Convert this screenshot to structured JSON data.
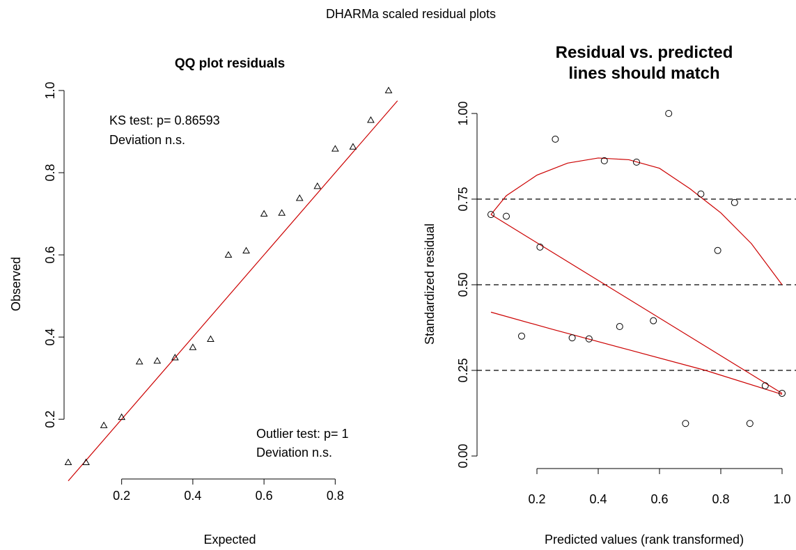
{
  "figure": {
    "title": "DHARMa scaled residual plots"
  },
  "chart_data": [
    {
      "type": "scatter",
      "title": "QQ plot residuals",
      "xlabel": "Expected",
      "ylabel": "Observed",
      "xlim": [
        0.05,
        0.95
      ],
      "ylim": [
        0.08,
        1.0
      ],
      "xticks": [
        0.2,
        0.4,
        0.6,
        0.8
      ],
      "xtick_labels": [
        "0.2",
        "0.4",
        "0.6",
        "0.8"
      ],
      "yticks": [
        0.2,
        0.4,
        0.6,
        0.8,
        1.0
      ],
      "ytick_labels": [
        "0.2",
        "0.4",
        "0.6",
        "0.8",
        "1.0"
      ],
      "grid": false,
      "marker": "triangle",
      "points": [
        {
          "x": 0.05,
          "y": 0.095
        },
        {
          "x": 0.1,
          "y": 0.095
        },
        {
          "x": 0.15,
          "y": 0.185
        },
        {
          "x": 0.2,
          "y": 0.205
        },
        {
          "x": 0.25,
          "y": 0.34
        },
        {
          "x": 0.3,
          "y": 0.342
        },
        {
          "x": 0.35,
          "y": 0.35
        },
        {
          "x": 0.4,
          "y": 0.375
        },
        {
          "x": 0.45,
          "y": 0.395
        },
        {
          "x": 0.5,
          "y": 0.6
        },
        {
          "x": 0.55,
          "y": 0.61
        },
        {
          "x": 0.6,
          "y": 0.7
        },
        {
          "x": 0.65,
          "y": 0.702
        },
        {
          "x": 0.7,
          "y": 0.738
        },
        {
          "x": 0.75,
          "y": 0.767
        },
        {
          "x": 0.8,
          "y": 0.858
        },
        {
          "x": 0.85,
          "y": 0.863
        },
        {
          "x": 0.9,
          "y": 0.928
        },
        {
          "x": 0.95,
          "y": 1.0
        }
      ],
      "reference_line": {
        "from": [
          0.05,
          0.05
        ],
        "to": [
          0.975,
          0.975
        ],
        "color": "#cc0000"
      },
      "annotations": [
        {
          "lines": [
            "KS test: p= 0.86593",
            "Deviation  n.s."
          ],
          "position": "top-left"
        },
        {
          "lines": [
            "Outlier test: p= 1",
            "Deviation  n.s."
          ],
          "position": "bottom-right"
        }
      ]
    },
    {
      "type": "scatter",
      "title": "Residual vs. predicted\nlines should match",
      "title_lines": [
        "Residual vs. predicted",
        "lines should match"
      ],
      "xlabel": "Predicted values (rank transformed)",
      "ylabel": "Standardized residual",
      "xlim": [
        0.05,
        1.0
      ],
      "ylim": [
        0.0,
        1.0
      ],
      "xticks": [
        0.2,
        0.4,
        0.6,
        0.8,
        1.0
      ],
      "xtick_labels": [
        "0.2",
        "0.4",
        "0.6",
        "0.8",
        "1.0"
      ],
      "yticks": [
        0.0,
        0.25,
        0.5,
        0.75,
        1.0
      ],
      "ytick_labels": [
        "0.00",
        "0.25",
        "0.50",
        "0.75",
        "1.00"
      ],
      "grid": false,
      "marker": "circle",
      "points": [
        {
          "x": 0.05,
          "y": 0.705
        },
        {
          "x": 0.1,
          "y": 0.7
        },
        {
          "x": 0.15,
          "y": 0.35
        },
        {
          "x": 0.21,
          "y": 0.61
        },
        {
          "x": 0.26,
          "y": 0.925
        },
        {
          "x": 0.315,
          "y": 0.345
        },
        {
          "x": 0.37,
          "y": 0.342
        },
        {
          "x": 0.42,
          "y": 0.862
        },
        {
          "x": 0.47,
          "y": 0.378
        },
        {
          "x": 0.525,
          "y": 0.858
        },
        {
          "x": 0.58,
          "y": 0.395
        },
        {
          "x": 0.63,
          "y": 1.0
        },
        {
          "x": 0.685,
          "y": 0.095
        },
        {
          "x": 0.735,
          "y": 0.765
        },
        {
          "x": 0.79,
          "y": 0.6
        },
        {
          "x": 0.845,
          "y": 0.74
        },
        {
          "x": 0.895,
          "y": 0.095
        },
        {
          "x": 0.945,
          "y": 0.205
        },
        {
          "x": 1.0,
          "y": 0.183
        }
      ],
      "reference_lines": [
        0.25,
        0.5,
        0.75
      ],
      "quantile_lines": {
        "color": "#cc0000",
        "lines": [
          {
            "x": [
              0.05,
              0.1,
              0.2,
              0.3,
              0.4,
              0.5,
              0.6,
              0.7,
              0.8,
              0.9,
              1.0
            ],
            "y": [
              0.705,
              0.76,
              0.82,
              0.855,
              0.87,
              0.865,
              0.84,
              0.78,
              0.71,
              0.62,
              0.5
            ]
          },
          {
            "x": [
              0.05,
              1.0
            ],
            "y": [
              0.705,
              0.183
            ]
          },
          {
            "x": [
              0.05,
              0.25,
              0.5,
              0.75,
              1.0
            ],
            "y": [
              0.42,
              0.37,
              0.31,
              0.25,
              0.18
            ]
          }
        ]
      }
    }
  ]
}
